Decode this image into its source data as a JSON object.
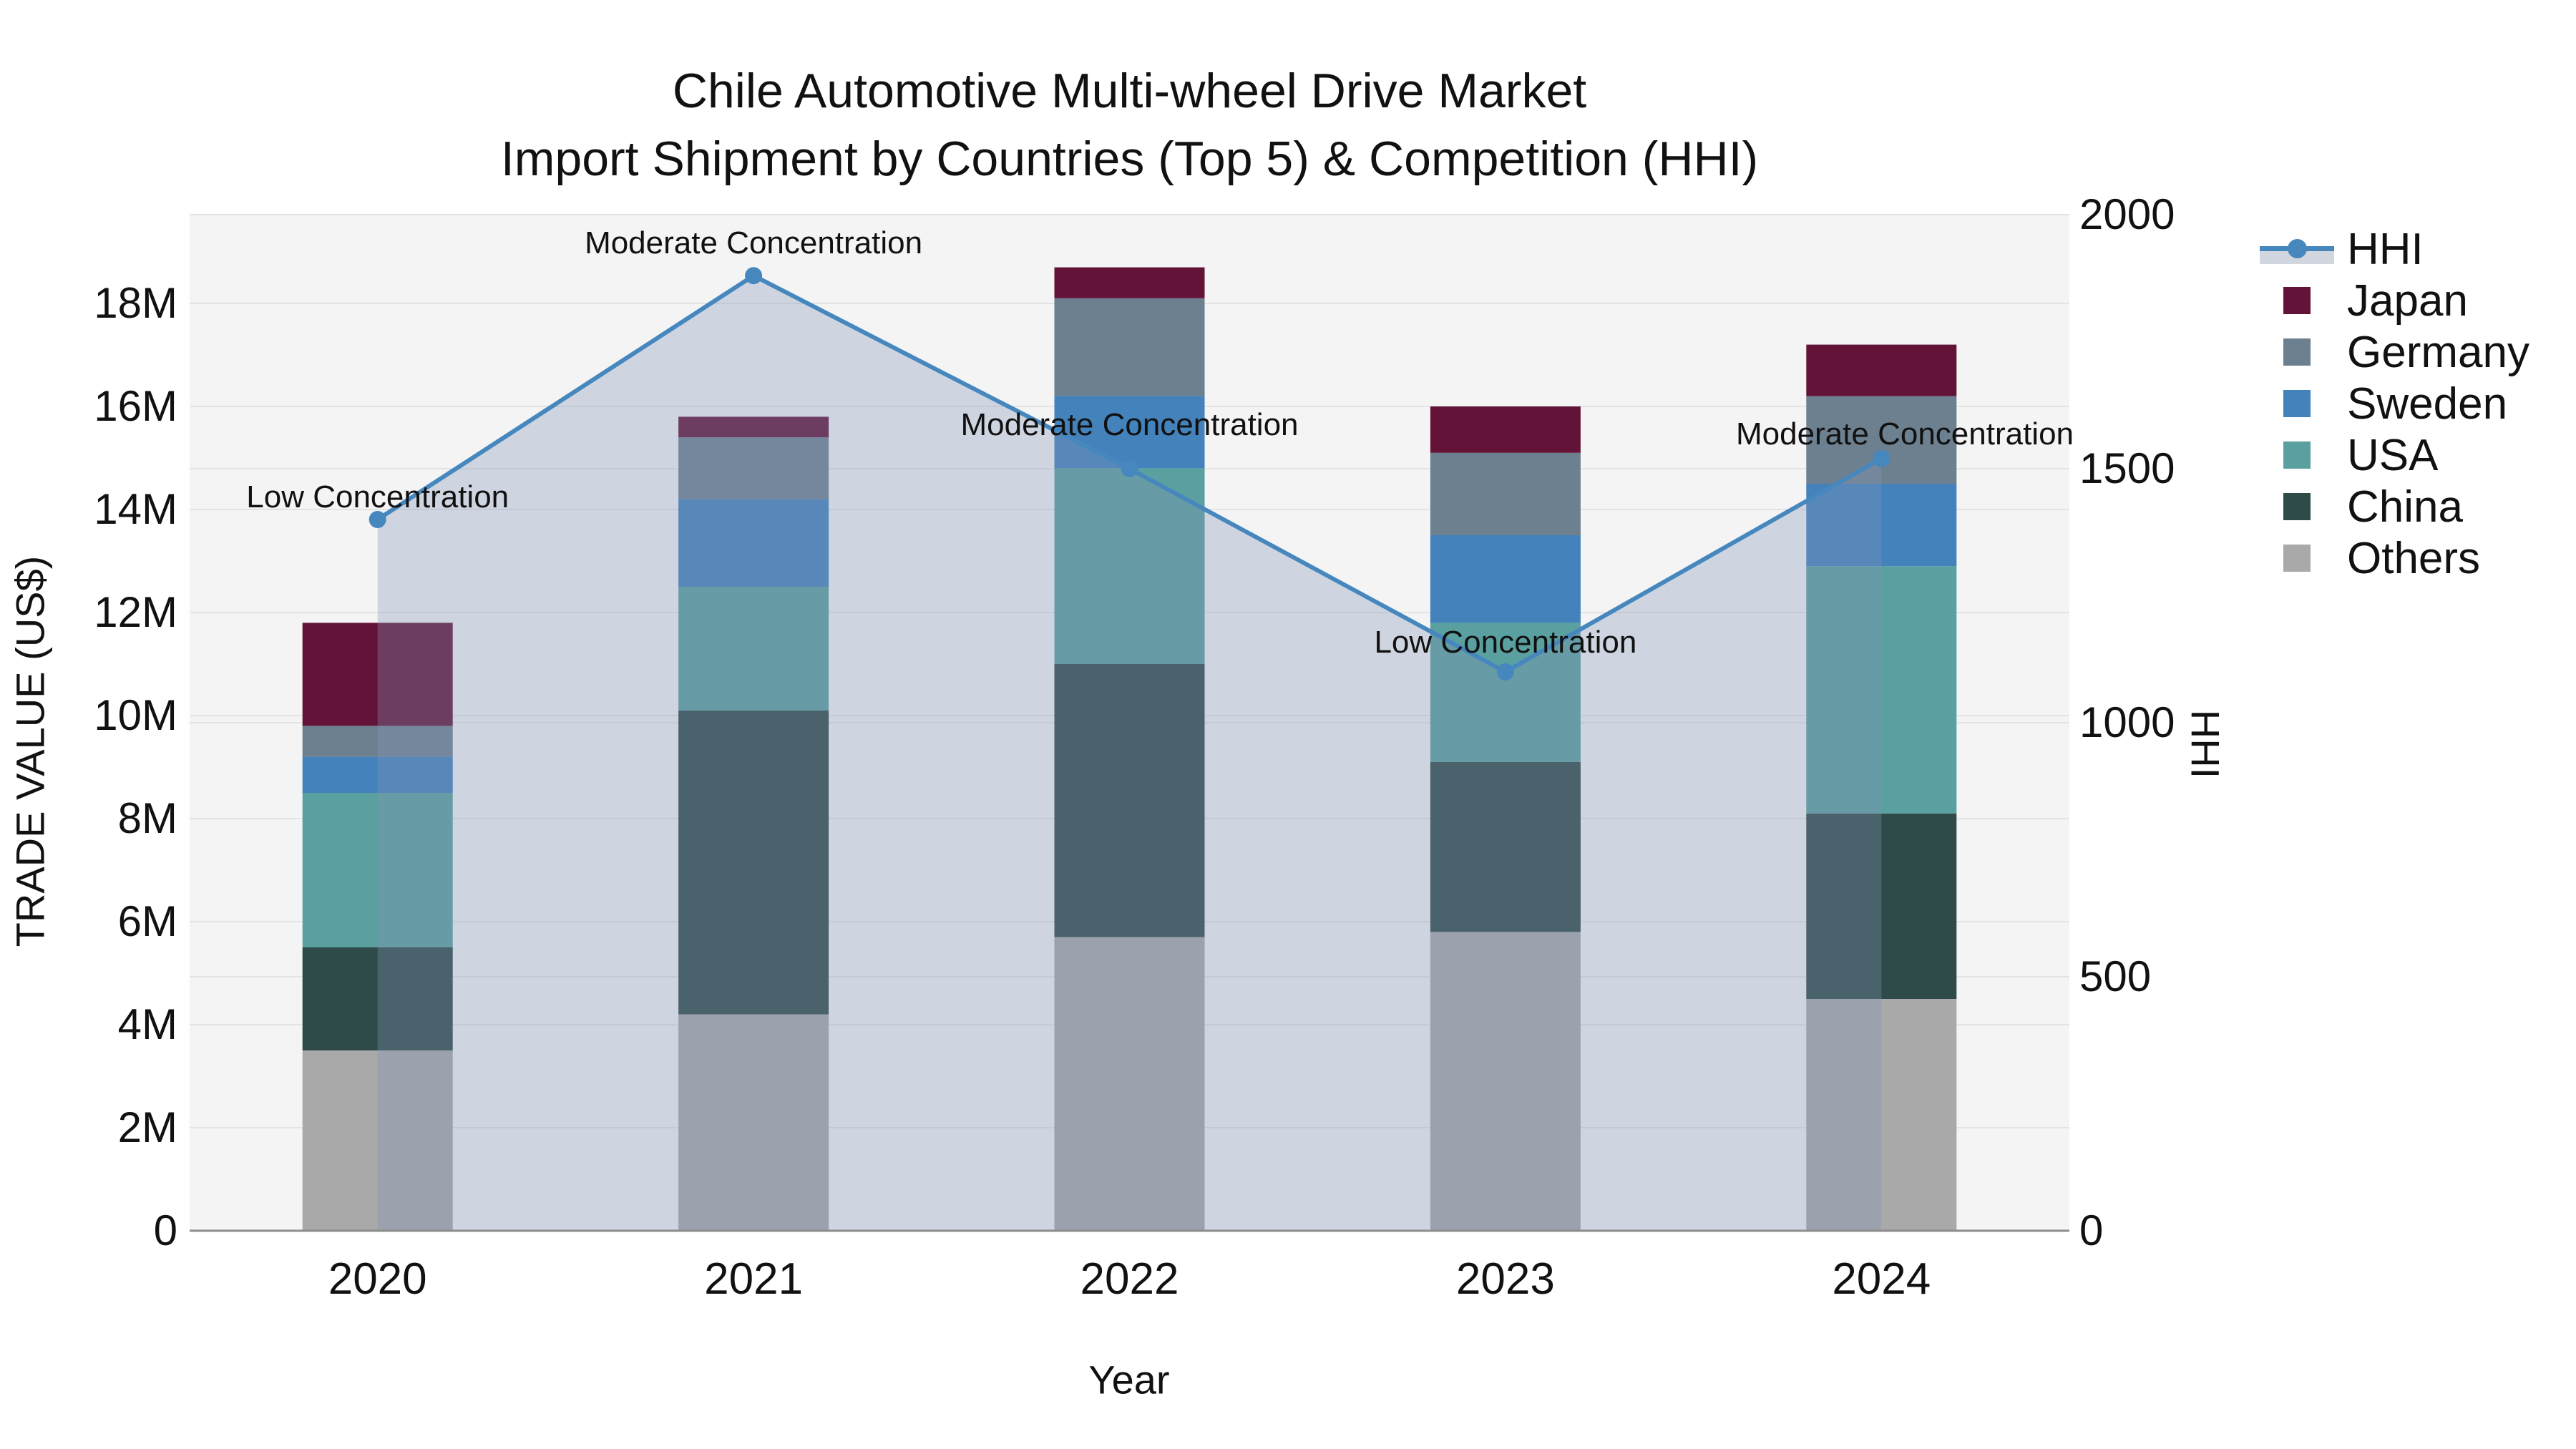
{
  "chart_data": {
    "type": "bar",
    "subtype": "stacked-bar-with-line",
    "title_line1": "Chile Automotive Multi-wheel Drive Market",
    "title_line2": "Import Shipment by Countries (Top 5) & Competition (HHI)",
    "xlabel": "Year",
    "ylabel_left": "TRADE VALUE (US$)",
    "ylabel_right": "HHI",
    "categories": [
      "2020",
      "2021",
      "2022",
      "2023",
      "2024"
    ],
    "stack_order_bottom_to_top": [
      "Others",
      "China",
      "USA",
      "Sweden",
      "Germany",
      "Japan"
    ],
    "series": [
      {
        "name": "Japan",
        "color": "#641338",
        "values_million_usd": [
          2.0,
          0.4,
          0.6,
          0.9,
          1.0
        ]
      },
      {
        "name": "Germany",
        "color": "#6d808f",
        "values_million_usd": [
          0.6,
          1.2,
          1.9,
          1.6,
          1.7
        ]
      },
      {
        "name": "Sweden",
        "color": "#4382ba",
        "values_million_usd": [
          0.7,
          1.7,
          1.4,
          1.7,
          1.6
        ]
      },
      {
        "name": "USA",
        "color": "#5ba0a0",
        "values_million_usd": [
          3.0,
          2.4,
          3.8,
          2.7,
          4.8
        ]
      },
      {
        "name": "China",
        "color": "#2e4b49",
        "values_million_usd": [
          2.0,
          5.9,
          5.3,
          3.3,
          3.6
        ]
      },
      {
        "name": "Others",
        "color": "#a9a9a9",
        "values_million_usd": [
          3.5,
          4.2,
          5.7,
          5.8,
          4.5
        ]
      }
    ],
    "bar_totals_million_usd": [
      11.8,
      15.8,
      18.7,
      16.0,
      17.1
    ],
    "hhi_line": {
      "name": "HHI",
      "color": "#4687be",
      "fill_color": "rgba(130,150,185,0.32)",
      "values": [
        1400,
        1880,
        1500,
        1100,
        1520
      ]
    },
    "annotations": [
      {
        "category": "2020",
        "text": "Low Concentration"
      },
      {
        "category": "2021",
        "text": "Moderate Concentration"
      },
      {
        "category": "2022",
        "text": "Moderate Concentration"
      },
      {
        "category": "2023",
        "text": "Low Concentration"
      },
      {
        "category": "2024",
        "text": "Moderate Concentration"
      }
    ],
    "y_left_axis": {
      "min": 0,
      "max_visible": 19.7,
      "tick_labels": [
        "0",
        "2M",
        "4M",
        "6M",
        "8M",
        "10M",
        "12M",
        "14M",
        "16M",
        "18M"
      ],
      "tick_step_million": 2
    },
    "y_right_axis": {
      "min": 0,
      "max": 2000,
      "tick_labels": [
        "0",
        "500",
        "1000",
        "1500",
        "2000"
      ],
      "tick_step": 500
    },
    "legend_entries": [
      "HHI",
      "Japan",
      "Germany",
      "Sweden",
      "USA",
      "China",
      "Others"
    ],
    "grid": "on",
    "legend_position": "right-top-outside",
    "colors": {
      "plot_background": "#f4f4f4",
      "gridline": "#e3e3e3",
      "axis_line": "#8c8c8c",
      "text": "#111111"
    }
  }
}
